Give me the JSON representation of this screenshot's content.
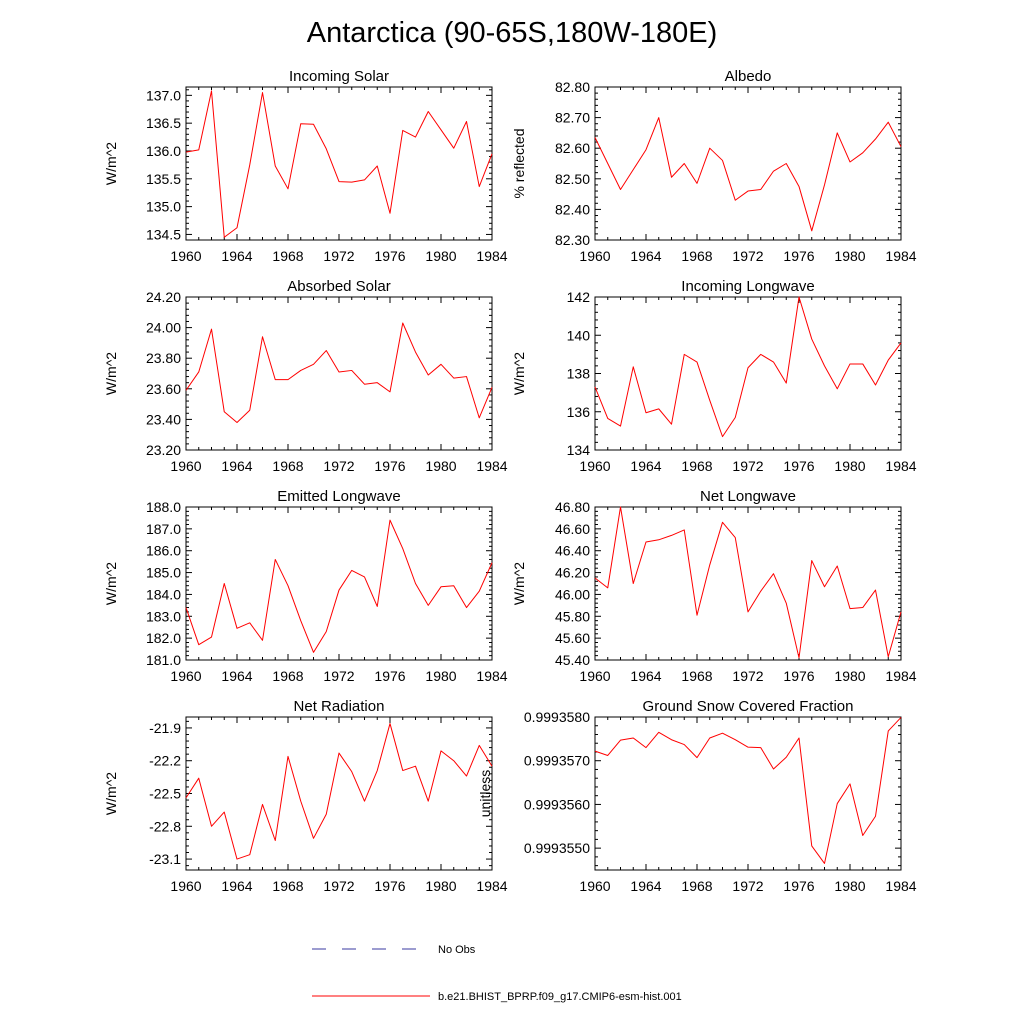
{
  "figure": {
    "title": "Antarctica (90-65S,180W-180E)"
  },
  "legend": {
    "entries": [
      {
        "label": "No Obs",
        "style": "dashed",
        "color": "#3a3aa0"
      },
      {
        "label": "b.e21.BHIST_BPRP.f09_g17.CMIP6-esm-hist.001",
        "style": "solid",
        "color": "#ff0000"
      }
    ]
  },
  "chart_data": [
    {
      "type": "line",
      "title": "Incoming Solar",
      "ylabel": "W/m^2",
      "xlim": [
        1960,
        1984
      ],
      "ylim": [
        134.4,
        137.15
      ],
      "x_ticks": [
        1960,
        1964,
        1968,
        1972,
        1976,
        1980,
        1984
      ],
      "y_ticks": [
        134.5,
        135.0,
        135.5,
        136.0,
        136.5,
        137.0
      ],
      "y_tick_labels": [
        "134.5",
        "135.0",
        "135.5",
        "136.0",
        "136.5",
        "137.0"
      ],
      "series": [
        {
          "color": "#ff0000",
          "x": [
            1960,
            1961,
            1962,
            1963,
            1964,
            1965,
            1966,
            1967,
            1968,
            1969,
            1970,
            1971,
            1972,
            1973,
            1974,
            1975,
            1976,
            1977,
            1978,
            1979,
            1980,
            1981,
            1982,
            1983,
            1984
          ],
          "y": [
            135.98,
            136.02,
            137.08,
            134.45,
            134.62,
            135.75,
            137.05,
            135.73,
            135.32,
            136.49,
            136.48,
            136.04,
            135.45,
            135.44,
            135.48,
            135.73,
            134.88,
            136.37,
            136.25,
            136.71,
            136.38,
            136.05,
            136.53,
            135.36,
            135.95
          ]
        }
      ]
    },
    {
      "type": "line",
      "title": "Albedo",
      "ylabel": "% reflected",
      "xlim": [
        1960,
        1984
      ],
      "ylim": [
        82.3,
        82.8
      ],
      "x_ticks": [
        1960,
        1964,
        1968,
        1972,
        1976,
        1980,
        1984
      ],
      "y_ticks": [
        82.3,
        82.4,
        82.5,
        82.6,
        82.7,
        82.8
      ],
      "y_tick_labels": [
        "82.30",
        "82.40",
        "82.50",
        "82.60",
        "82.70",
        "82.80"
      ],
      "series": [
        {
          "color": "#ff0000",
          "x": [
            1960,
            1961,
            1962,
            1963,
            1964,
            1965,
            1966,
            1967,
            1968,
            1969,
            1970,
            1971,
            1972,
            1973,
            1974,
            1975,
            1976,
            1977,
            1978,
            1979,
            1980,
            1981,
            1982,
            1983,
            1984
          ],
          "y": [
            82.635,
            82.55,
            82.465,
            82.53,
            82.595,
            82.7,
            82.505,
            82.55,
            82.485,
            82.6,
            82.56,
            82.43,
            82.46,
            82.465,
            82.525,
            82.55,
            82.475,
            82.33,
            82.48,
            82.65,
            82.555,
            82.585,
            82.63,
            82.685,
            82.605
          ]
        }
      ]
    },
    {
      "type": "line",
      "title": "Absorbed Solar",
      "ylabel": "W/m^2",
      "xlim": [
        1960,
        1984
      ],
      "ylim": [
        23.2,
        24.2
      ],
      "x_ticks": [
        1960,
        1964,
        1968,
        1972,
        1976,
        1980,
        1984
      ],
      "y_ticks": [
        23.2,
        23.4,
        23.6,
        23.8,
        24.0,
        24.2
      ],
      "y_tick_labels": [
        "23.20",
        "23.40",
        "23.60",
        "23.80",
        "24.00",
        "24.20"
      ],
      "series": [
        {
          "color": "#ff0000",
          "x": [
            1960,
            1961,
            1962,
            1963,
            1964,
            1965,
            1966,
            1967,
            1968,
            1969,
            1970,
            1971,
            1972,
            1973,
            1974,
            1975,
            1976,
            1977,
            1978,
            1979,
            1980,
            1981,
            1982,
            1983,
            1984
          ],
          "y": [
            23.59,
            23.71,
            23.99,
            23.45,
            23.38,
            23.46,
            23.94,
            23.66,
            23.66,
            23.72,
            23.76,
            23.85,
            23.71,
            23.72,
            23.63,
            23.64,
            23.58,
            24.03,
            23.84,
            23.69,
            23.76,
            23.67,
            23.68,
            23.41,
            23.61
          ]
        }
      ]
    },
    {
      "type": "line",
      "title": "Incoming Longwave",
      "ylabel": "W/m^2",
      "xlim": [
        1960,
        1984
      ],
      "ylim": [
        134,
        142
      ],
      "x_ticks": [
        1960,
        1964,
        1968,
        1972,
        1976,
        1980,
        1984
      ],
      "y_ticks": [
        134,
        136,
        138,
        140,
        142
      ],
      "y_tick_labels": [
        "134",
        "136",
        "138",
        "140",
        "142"
      ],
      "series": [
        {
          "color": "#ff0000",
          "x": [
            1960,
            1961,
            1962,
            1963,
            1964,
            1965,
            1966,
            1967,
            1968,
            1969,
            1970,
            1971,
            1972,
            1973,
            1974,
            1975,
            1976,
            1977,
            1978,
            1979,
            1980,
            1981,
            1982,
            1983,
            1984
          ],
          "y": [
            137.3,
            135.65,
            135.25,
            138.35,
            135.95,
            136.15,
            135.35,
            139.0,
            138.6,
            136.6,
            134.7,
            135.7,
            138.3,
            139.0,
            138.6,
            137.5,
            142.0,
            139.8,
            138.4,
            137.2,
            138.5,
            138.5,
            137.4,
            138.7,
            139.6
          ]
        }
      ]
    },
    {
      "type": "line",
      "title": "Emitted Longwave",
      "ylabel": "W/m^2",
      "xlim": [
        1960,
        1984
      ],
      "ylim": [
        181.0,
        188.0
      ],
      "x_ticks": [
        1960,
        1964,
        1968,
        1972,
        1976,
        1980,
        1984
      ],
      "y_ticks": [
        181,
        182,
        183,
        184,
        185,
        186,
        187,
        188
      ],
      "y_tick_labels": [
        "181.0",
        "182.0",
        "183.0",
        "184.0",
        "185.0",
        "186.0",
        "187.0",
        "188.0"
      ],
      "series": [
        {
          "color": "#ff0000",
          "x": [
            1960,
            1961,
            1962,
            1963,
            1964,
            1965,
            1966,
            1967,
            1968,
            1969,
            1970,
            1971,
            1972,
            1973,
            1974,
            1975,
            1976,
            1977,
            1978,
            1979,
            1980,
            1981,
            1982,
            1983,
            1984
          ],
          "y": [
            183.4,
            181.7,
            182.05,
            184.5,
            182.45,
            182.7,
            181.9,
            185.6,
            184.4,
            182.8,
            181.35,
            182.3,
            184.2,
            185.1,
            184.8,
            183.45,
            187.4,
            186.1,
            184.5,
            183.5,
            184.35,
            184.4,
            183.4,
            184.15,
            185.45
          ]
        }
      ]
    },
    {
      "type": "line",
      "title": "Net Longwave",
      "ylabel": "W/m^2",
      "xlim": [
        1960,
        1984
      ],
      "ylim": [
        45.4,
        46.8
      ],
      "x_ticks": [
        1960,
        1964,
        1968,
        1972,
        1976,
        1980,
        1984
      ],
      "y_ticks": [
        45.4,
        45.6,
        45.8,
        46.0,
        46.2,
        46.4,
        46.6,
        46.8
      ],
      "y_tick_labels": [
        "45.40",
        "45.60",
        "45.80",
        "46.00",
        "46.20",
        "46.40",
        "46.60",
        "46.80"
      ],
      "series": [
        {
          "color": "#ff0000",
          "x": [
            1960,
            1961,
            1962,
            1963,
            1964,
            1965,
            1966,
            1967,
            1968,
            1969,
            1970,
            1971,
            1972,
            1973,
            1974,
            1975,
            1976,
            1977,
            1978,
            1979,
            1980,
            1981,
            1982,
            1983,
            1984
          ],
          "y": [
            46.15,
            46.06,
            46.8,
            46.1,
            46.48,
            46.5,
            46.54,
            46.59,
            45.81,
            46.27,
            46.66,
            46.52,
            45.84,
            46.03,
            46.19,
            45.92,
            45.42,
            46.31,
            46.07,
            46.26,
            45.87,
            45.88,
            46.04,
            45.43,
            45.84
          ]
        }
      ]
    },
    {
      "type": "line",
      "title": "Net Radiation",
      "ylabel": "W/m^2",
      "xlim": [
        1960,
        1984
      ],
      "ylim": [
        -23.2,
        -21.8
      ],
      "x_ticks": [
        1960,
        1964,
        1968,
        1972,
        1976,
        1980,
        1984
      ],
      "y_ticks": [
        -23.1,
        -22.8,
        -22.5,
        -22.2,
        -21.9
      ],
      "y_tick_labels": [
        "-23.1",
        "-22.8",
        "-22.5",
        "-22.2",
        "-21.9"
      ],
      "series": [
        {
          "color": "#ff0000",
          "x": [
            1960,
            1961,
            1962,
            1963,
            1964,
            1965,
            1966,
            1967,
            1968,
            1969,
            1970,
            1971,
            1972,
            1973,
            1974,
            1975,
            1976,
            1977,
            1978,
            1979,
            1980,
            1981,
            1982,
            1983,
            1984
          ],
          "y": [
            -22.54,
            -22.36,
            -22.8,
            -22.67,
            -23.1,
            -23.06,
            -22.6,
            -22.93,
            -22.16,
            -22.57,
            -22.91,
            -22.69,
            -22.13,
            -22.3,
            -22.57,
            -22.29,
            -21.86,
            -22.29,
            -22.25,
            -22.57,
            -22.11,
            -22.2,
            -22.34,
            -22.06,
            -22.25
          ]
        }
      ]
    },
    {
      "type": "line",
      "title": "Ground Snow Covered Fraction",
      "ylabel": "unitless",
      "xlim": [
        1960,
        1984
      ],
      "ylim": [
        0.9993545,
        0.999358
      ],
      "x_ticks": [
        1960,
        1964,
        1968,
        1972,
        1976,
        1980,
        1984
      ],
      "y_ticks": [
        0.999355,
        0.999356,
        0.999357,
        0.999358
      ],
      "y_tick_labels": [
        "0.9993550",
        "0.9993560",
        "0.9993570",
        "0.9993580"
      ],
      "series": [
        {
          "color": "#ff0000",
          "x": [
            1960,
            1961,
            1962,
            1963,
            1964,
            1965,
            1966,
            1967,
            1968,
            1969,
            1970,
            1971,
            1972,
            1973,
            1974,
            1975,
            1976,
            1977,
            1978,
            1979,
            1980,
            1981,
            1982,
            1983,
            1984
          ],
          "y": [
            0.99935722,
            0.99935712,
            0.99935747,
            0.99935752,
            0.9993573,
            0.99935765,
            0.99935748,
            0.99935737,
            0.99935707,
            0.99935752,
            0.99935763,
            0.99935748,
            0.99935731,
            0.9993573,
            0.99935681,
            0.99935708,
            0.99935752,
            0.99935505,
            0.99935465,
            0.99935602,
            0.99935647,
            0.99935529,
            0.99935573,
            0.99935768,
            0.99935799
          ]
        }
      ]
    }
  ]
}
